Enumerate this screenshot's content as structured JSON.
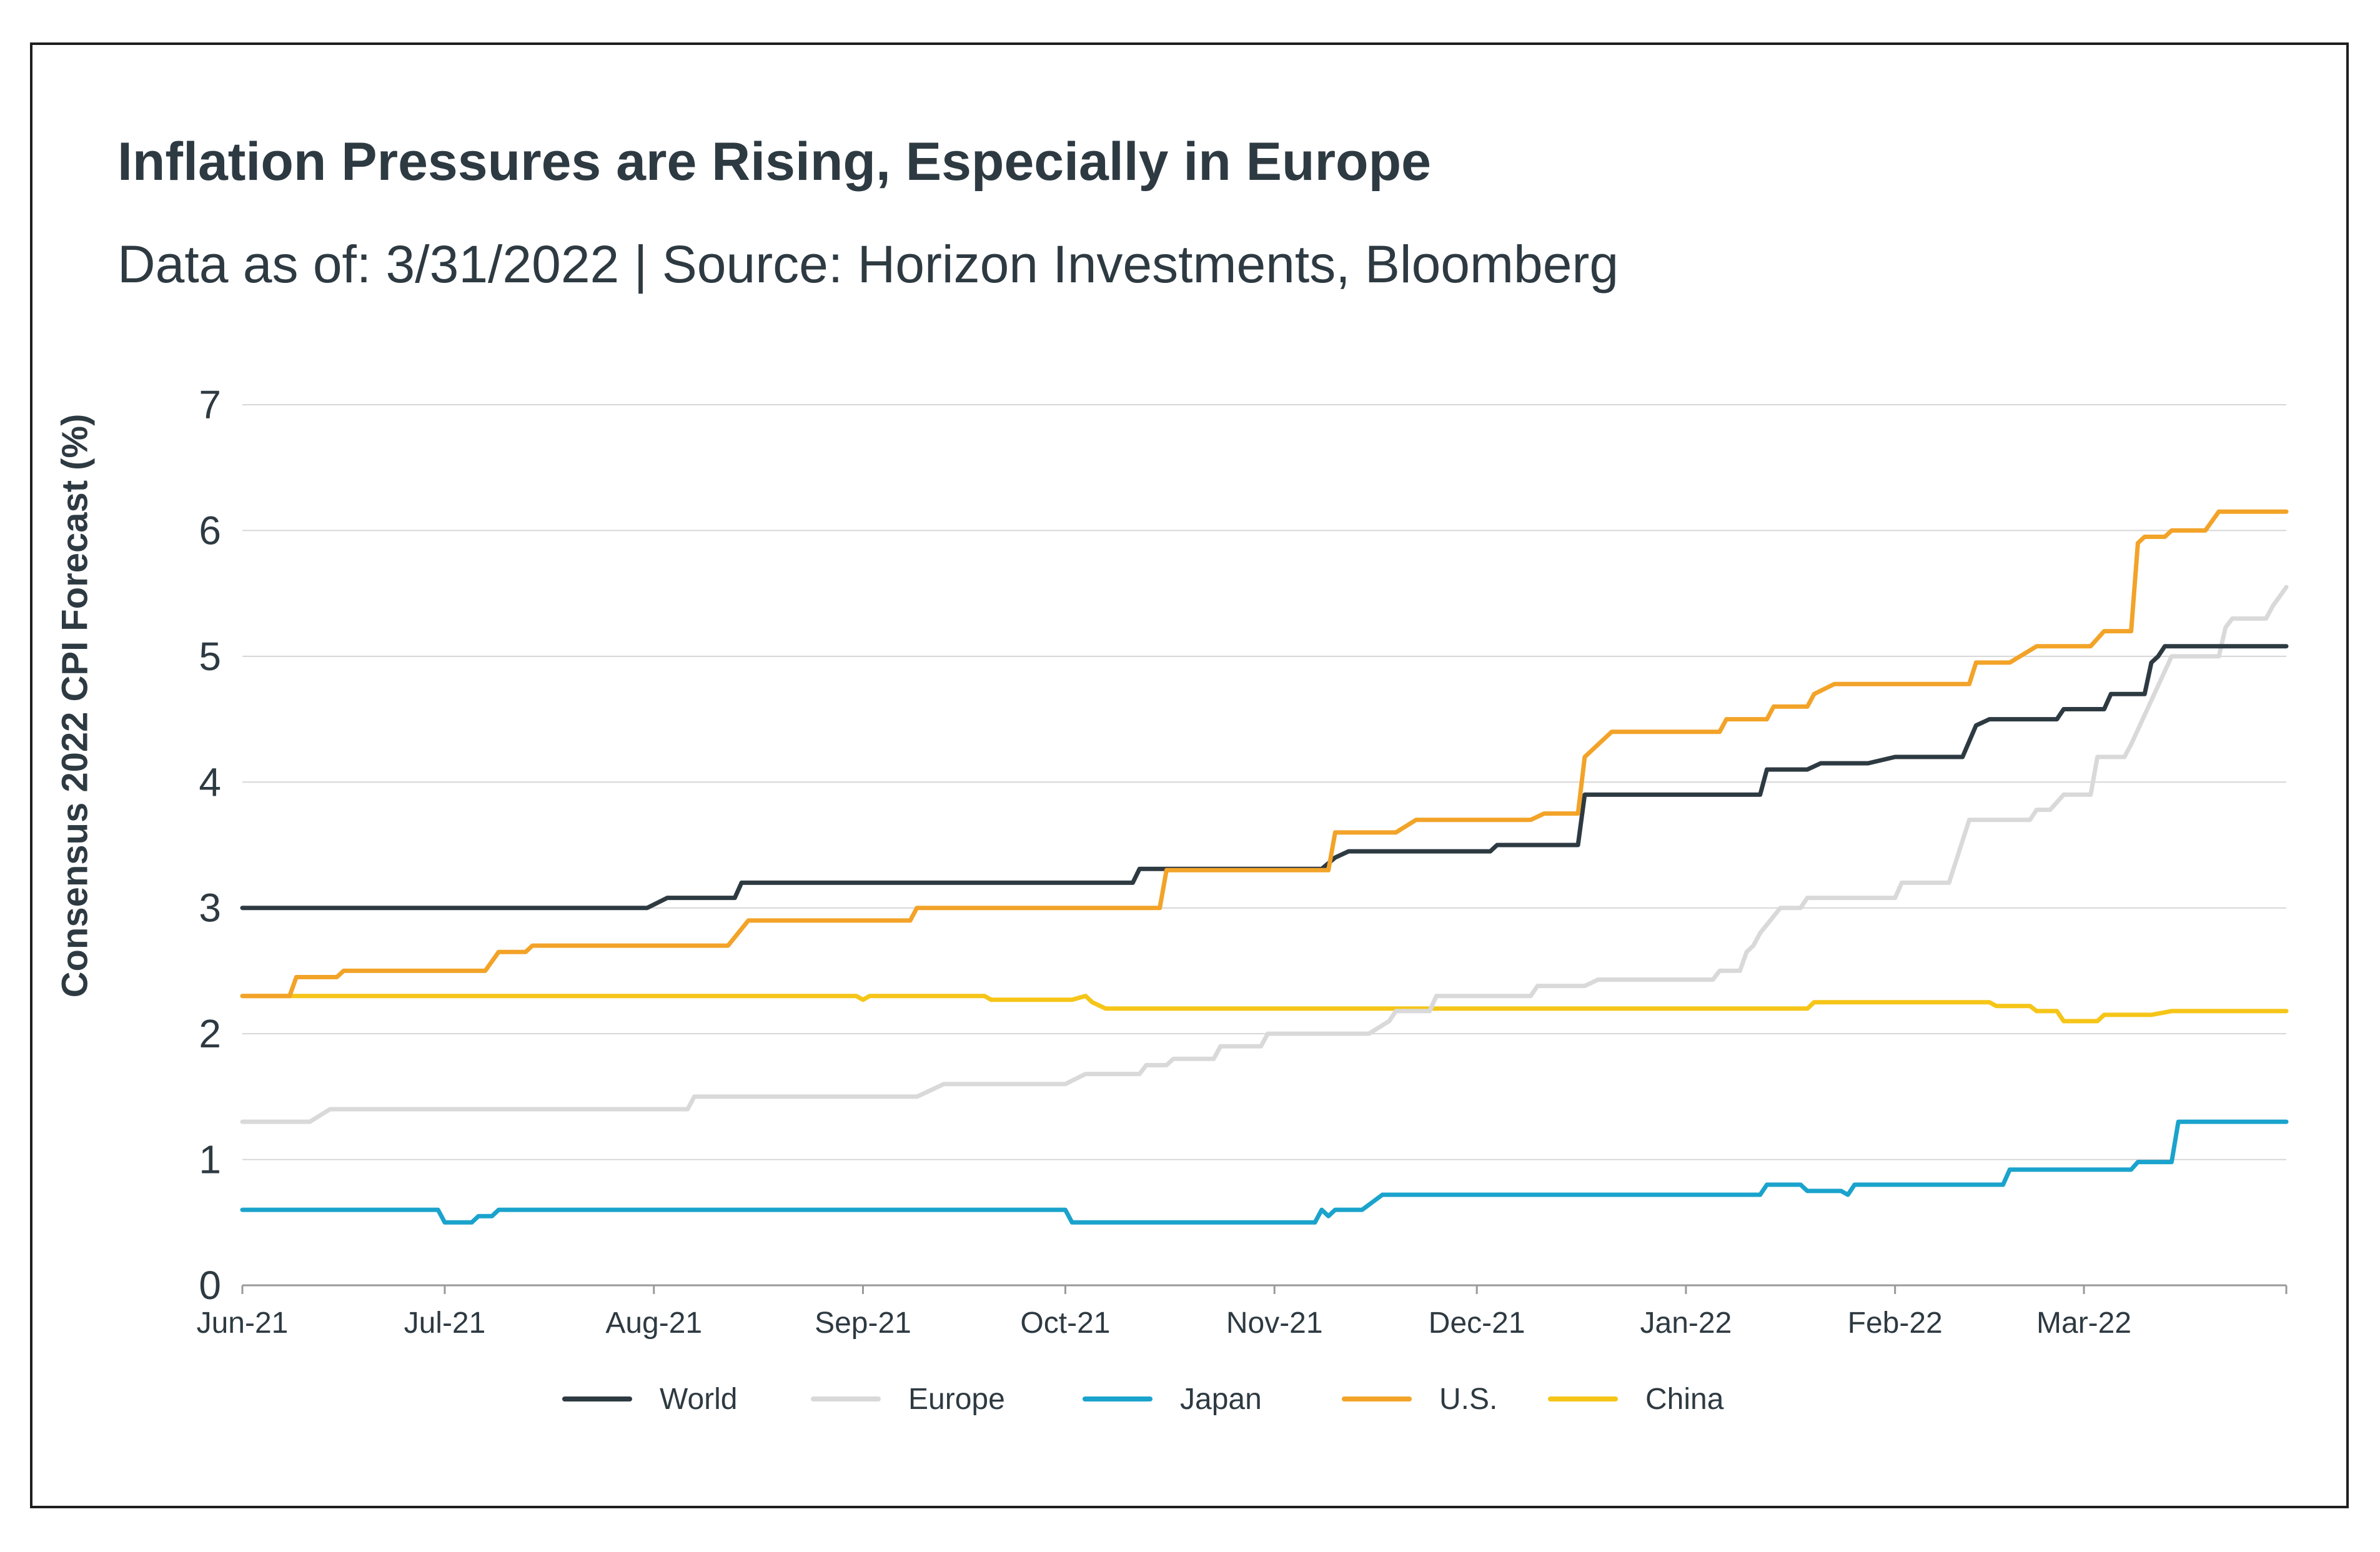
{
  "title": "Inflation Pressures are Rising, Especially in Europe",
  "subtitle": "Data as of: 3/31/2022 | Source: Horizon Investments, Bloomberg",
  "chart_data": {
    "type": "line",
    "title": "Inflation Pressures are Rising, Especially in Europe",
    "subtitle": "Data as of: 3/31/2022 | Source: Horizon Investments, Bloomberg",
    "xlabel": "",
    "ylabel": "Consensus 2022 CPI Forecast (%)",
    "ylim": [
      0,
      7
    ],
    "yticks": [
      0,
      1,
      2,
      3,
      4,
      5,
      6,
      7
    ],
    "xlim": [
      "2021-06-01",
      "2022-03-31"
    ],
    "xticks": [
      {
        "date": "2021-06-01",
        "label": "Jun-21"
      },
      {
        "date": "2021-07-01",
        "label": "Jul-21"
      },
      {
        "date": "2021-08-01",
        "label": "Aug-21"
      },
      {
        "date": "2021-09-01",
        "label": "Sep-21"
      },
      {
        "date": "2021-10-01",
        "label": "Oct-21"
      },
      {
        "date": "2021-11-01",
        "label": "Nov-21"
      },
      {
        "date": "2021-12-01",
        "label": "Dec-21"
      },
      {
        "date": "2022-01-01",
        "label": "Jan-22"
      },
      {
        "date": "2022-02-01",
        "label": "Feb-22"
      },
      {
        "date": "2022-03-01",
        "label": "Mar-22"
      }
    ],
    "grid": "horizontal",
    "legend_position": "bottom",
    "series": [
      {
        "name": "World",
        "color": "#2e3a42",
        "step": true,
        "points": [
          [
            "2021-06-01",
            3.0
          ],
          [
            "2021-07-31",
            3.0
          ],
          [
            "2021-08-03",
            3.08
          ],
          [
            "2021-08-13",
            3.08
          ],
          [
            "2021-08-14",
            3.2
          ],
          [
            "2021-10-11",
            3.2
          ],
          [
            "2021-10-12",
            3.31
          ],
          [
            "2021-11-08",
            3.31
          ],
          [
            "2021-11-10",
            3.4
          ],
          [
            "2021-11-12",
            3.45
          ],
          [
            "2021-12-03",
            3.45
          ],
          [
            "2021-12-04",
            3.5
          ],
          [
            "2021-12-16",
            3.5
          ],
          [
            "2021-12-17",
            3.9
          ],
          [
            "2022-01-12",
            3.9
          ],
          [
            "2022-01-13",
            4.1
          ],
          [
            "2022-01-19",
            4.1
          ],
          [
            "2022-01-21",
            4.15
          ],
          [
            "2022-01-28",
            4.15
          ],
          [
            "2022-02-01",
            4.2
          ],
          [
            "2022-02-11",
            4.2
          ],
          [
            "2022-02-13",
            4.45
          ],
          [
            "2022-02-15",
            4.5
          ],
          [
            "2022-02-25",
            4.5
          ],
          [
            "2022-02-26",
            4.58
          ],
          [
            "2022-03-04",
            4.58
          ],
          [
            "2022-03-05",
            4.7
          ],
          [
            "2022-03-10",
            4.7
          ],
          [
            "2022-03-11",
            4.95
          ],
          [
            "2022-03-12",
            5.0
          ],
          [
            "2022-03-13",
            5.08
          ],
          [
            "2022-03-31",
            5.08
          ]
        ]
      },
      {
        "name": "Europe",
        "color": "#d9d9d9",
        "step": true,
        "points": [
          [
            "2021-06-01",
            1.3
          ],
          [
            "2021-06-11",
            1.3
          ],
          [
            "2021-06-14",
            1.4
          ],
          [
            "2021-08-06",
            1.4
          ],
          [
            "2021-08-07",
            1.5
          ],
          [
            "2021-09-09",
            1.5
          ],
          [
            "2021-09-13",
            1.6
          ],
          [
            "2021-10-01",
            1.6
          ],
          [
            "2021-10-04",
            1.68
          ],
          [
            "2021-10-12",
            1.68
          ],
          [
            "2021-10-13",
            1.75
          ],
          [
            "2021-10-16",
            1.75
          ],
          [
            "2021-10-17",
            1.8
          ],
          [
            "2021-10-23",
            1.8
          ],
          [
            "2021-10-24",
            1.9
          ],
          [
            "2021-10-30",
            1.9
          ],
          [
            "2021-10-31",
            2.0
          ],
          [
            "2021-11-15",
            2.0
          ],
          [
            "2021-11-18",
            2.1
          ],
          [
            "2021-11-19",
            2.18
          ],
          [
            "2021-11-24",
            2.18
          ],
          [
            "2021-11-25",
            2.3
          ],
          [
            "2021-12-09",
            2.3
          ],
          [
            "2021-12-10",
            2.38
          ],
          [
            "2021-12-17",
            2.38
          ],
          [
            "2021-12-19",
            2.43
          ],
          [
            "2022-01-05",
            2.43
          ],
          [
            "2022-01-06",
            2.5
          ],
          [
            "2022-01-09",
            2.5
          ],
          [
            "2022-01-10",
            2.65
          ],
          [
            "2022-01-11",
            2.7
          ],
          [
            "2022-01-12",
            2.8
          ],
          [
            "2022-01-15",
            3.0
          ],
          [
            "2022-01-18",
            3.0
          ],
          [
            "2022-01-19",
            3.08
          ],
          [
            "2022-02-01",
            3.08
          ],
          [
            "2022-02-02",
            3.2
          ],
          [
            "2022-02-09",
            3.2
          ],
          [
            "2022-02-12",
            3.7
          ],
          [
            "2022-02-21",
            3.7
          ],
          [
            "2022-02-22",
            3.78
          ],
          [
            "2022-02-24",
            3.78
          ],
          [
            "2022-02-26",
            3.9
          ],
          [
            "2022-03-02",
            3.9
          ],
          [
            "2022-03-03",
            4.2
          ],
          [
            "2022-03-07",
            4.2
          ],
          [
            "2022-03-08",
            4.3
          ],
          [
            "2022-03-14",
            5.0
          ],
          [
            "2022-03-21",
            5.0
          ],
          [
            "2022-03-22",
            5.23
          ],
          [
            "2022-03-23",
            5.3
          ],
          [
            "2022-03-28",
            5.3
          ],
          [
            "2022-03-29",
            5.4
          ],
          [
            "2022-03-31",
            5.55
          ]
        ]
      },
      {
        "name": "Japan",
        "color": "#1aa3cc",
        "step": true,
        "points": [
          [
            "2021-06-01",
            0.6
          ],
          [
            "2021-06-30",
            0.6
          ],
          [
            "2021-07-01",
            0.5
          ],
          [
            "2021-07-05",
            0.5
          ],
          [
            "2021-07-06",
            0.55
          ],
          [
            "2021-07-08",
            0.55
          ],
          [
            "2021-07-09",
            0.6
          ],
          [
            "2021-10-01",
            0.6
          ],
          [
            "2021-10-02",
            0.5
          ],
          [
            "2021-11-07",
            0.5
          ],
          [
            "2021-11-08",
            0.6
          ],
          [
            "2021-11-09",
            0.55
          ],
          [
            "2021-11-10",
            0.6
          ],
          [
            "2021-11-14",
            0.6
          ],
          [
            "2021-11-17",
            0.72
          ],
          [
            "2022-01-12",
            0.72
          ],
          [
            "2022-01-13",
            0.8
          ],
          [
            "2022-01-18",
            0.8
          ],
          [
            "2022-01-19",
            0.75
          ],
          [
            "2022-01-24",
            0.75
          ],
          [
            "2022-01-25",
            0.72
          ],
          [
            "2022-01-26",
            0.8
          ],
          [
            "2022-02-17",
            0.8
          ],
          [
            "2022-02-18",
            0.92
          ],
          [
            "2022-03-08",
            0.92
          ],
          [
            "2022-03-09",
            0.98
          ],
          [
            "2022-03-14",
            0.98
          ],
          [
            "2022-03-15",
            1.3
          ],
          [
            "2022-03-31",
            1.3
          ]
        ]
      },
      {
        "name": "U.S.",
        "color": "#f2a328",
        "step": true,
        "points": [
          [
            "2021-06-01",
            2.3
          ],
          [
            "2021-06-08",
            2.3
          ],
          [
            "2021-06-09",
            2.45
          ],
          [
            "2021-06-15",
            2.45
          ],
          [
            "2021-06-16",
            2.5
          ],
          [
            "2021-07-07",
            2.5
          ],
          [
            "2021-07-09",
            2.65
          ],
          [
            "2021-07-13",
            2.65
          ],
          [
            "2021-07-14",
            2.7
          ],
          [
            "2021-08-12",
            2.7
          ],
          [
            "2021-08-15",
            2.9
          ],
          [
            "2021-09-08",
            2.9
          ],
          [
            "2021-09-09",
            3.0
          ],
          [
            "2021-10-15",
            3.0
          ],
          [
            "2021-10-16",
            3.3
          ],
          [
            "2021-11-09",
            3.3
          ],
          [
            "2021-11-10",
            3.6
          ],
          [
            "2021-11-19",
            3.6
          ],
          [
            "2021-11-22",
            3.7
          ],
          [
            "2021-12-09",
            3.7
          ],
          [
            "2021-12-11",
            3.75
          ],
          [
            "2021-12-16",
            3.75
          ],
          [
            "2021-12-17",
            4.2
          ],
          [
            "2021-12-21",
            4.4
          ],
          [
            "2022-01-06",
            4.4
          ],
          [
            "2022-01-07",
            4.5
          ],
          [
            "2022-01-13",
            4.5
          ],
          [
            "2022-01-14",
            4.6
          ],
          [
            "2022-01-19",
            4.6
          ],
          [
            "2022-01-20",
            4.7
          ],
          [
            "2022-01-23",
            4.78
          ],
          [
            "2022-02-12",
            4.78
          ],
          [
            "2022-02-13",
            4.95
          ],
          [
            "2022-02-18",
            4.95
          ],
          [
            "2022-02-22",
            5.08
          ],
          [
            "2022-03-02",
            5.08
          ],
          [
            "2022-03-04",
            5.2
          ],
          [
            "2022-03-08",
            5.2
          ],
          [
            "2022-03-09",
            5.9
          ],
          [
            "2022-03-10",
            5.95
          ],
          [
            "2022-03-13",
            5.95
          ],
          [
            "2022-03-14",
            6.0
          ],
          [
            "2022-03-19",
            6.0
          ],
          [
            "2022-03-21",
            6.15
          ],
          [
            "2022-03-31",
            6.15
          ]
        ]
      },
      {
        "name": "China",
        "color": "#f5c518",
        "step": true,
        "points": [
          [
            "2021-06-01",
            2.3
          ],
          [
            "2021-08-31",
            2.3
          ],
          [
            "2021-09-01",
            2.27
          ],
          [
            "2021-09-02",
            2.3
          ],
          [
            "2021-09-19",
            2.3
          ],
          [
            "2021-09-20",
            2.27
          ],
          [
            "2021-10-02",
            2.27
          ],
          [
            "2021-10-04",
            2.3
          ],
          [
            "2021-10-05",
            2.25
          ],
          [
            "2021-10-07",
            2.2
          ],
          [
            "2022-01-19",
            2.2
          ],
          [
            "2022-01-20",
            2.25
          ],
          [
            "2022-02-15",
            2.25
          ],
          [
            "2022-02-16",
            2.22
          ],
          [
            "2022-02-21",
            2.22
          ],
          [
            "2022-02-22",
            2.18
          ],
          [
            "2022-02-25",
            2.18
          ],
          [
            "2022-02-26",
            2.1
          ],
          [
            "2022-03-03",
            2.1
          ],
          [
            "2022-03-04",
            2.15
          ],
          [
            "2022-03-11",
            2.15
          ],
          [
            "2022-03-14",
            2.18
          ],
          [
            "2022-03-31",
            2.18
          ]
        ]
      }
    ]
  }
}
